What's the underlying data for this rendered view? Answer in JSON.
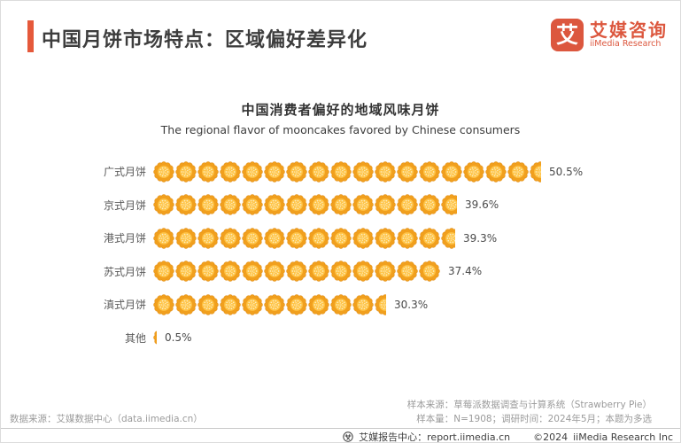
{
  "header": {
    "title": "中国月饼市场特点：区域偏好差异化",
    "logo": {
      "mark": "艾",
      "name_cn": "艾媒咨询",
      "name_en": "iiMedia Research"
    }
  },
  "chart_data": {
    "type": "bar",
    "variant": "pictogram-mooncake",
    "title": "中国消费者偏好的地域风味月饼",
    "subtitle": "The regional flavor of mooncakes favored by Chinese consumers",
    "categories": [
      "广式月饼",
      "京式月饼",
      "港式月饼",
      "苏式月饼",
      "滇式月饼",
      "其他"
    ],
    "values": [
      50.5,
      39.6,
      39.3,
      37.4,
      30.3,
      0.5
    ],
    "value_labels": [
      "50.5%",
      "39.6%",
      "39.3%",
      "37.4%",
      "30.3%",
      "0.5%"
    ],
    "unit": "%",
    "xlim": [
      0,
      55
    ],
    "legend": false,
    "grid": false,
    "colors": {
      "mooncake_outer": "#F1A01E",
      "mooncake_edge": "#E18A10",
      "mooncake_inner": "#FFC447",
      "mooncake_dots": "#FCEDC0"
    }
  },
  "footnotes": {
    "data_source": "数据来源：艾媒数据中心（data.iimedia.cn）",
    "sample_source": "样本来源：草莓派数据调查与计算系统（Strawberry Pie）",
    "sample_info": "样本量：N=1908；调研时间：2024年5月；本题为多选"
  },
  "footer": {
    "report_center": "艾媒报告中心：report.iimedia.cn",
    "copyright": "©2024",
    "company": "iiMedia Research Inc"
  },
  "accent_color": "#E5593B"
}
